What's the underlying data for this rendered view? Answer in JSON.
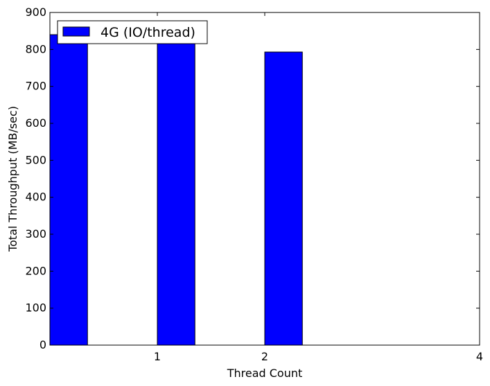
{
  "chart_data": {
    "type": "bar",
    "title": "",
    "xlabel": "Thread Count",
    "ylabel": "Total Throughput (MB/sec)",
    "xlim": [
      0,
      4
    ],
    "ylim": [
      0,
      900
    ],
    "x_ticks": [
      1,
      2,
      4
    ],
    "y_ticks": [
      0,
      100,
      200,
      300,
      400,
      500,
      600,
      700,
      800,
      900
    ],
    "bar_width": 0.35,
    "grid": false,
    "legend_position": "top-left",
    "series": [
      {
        "name": "4G (IO/thread)",
        "color": "#0000ff",
        "x": [
          0,
          1,
          2
        ],
        "values": [
          840,
          840,
          793
        ]
      }
    ]
  }
}
